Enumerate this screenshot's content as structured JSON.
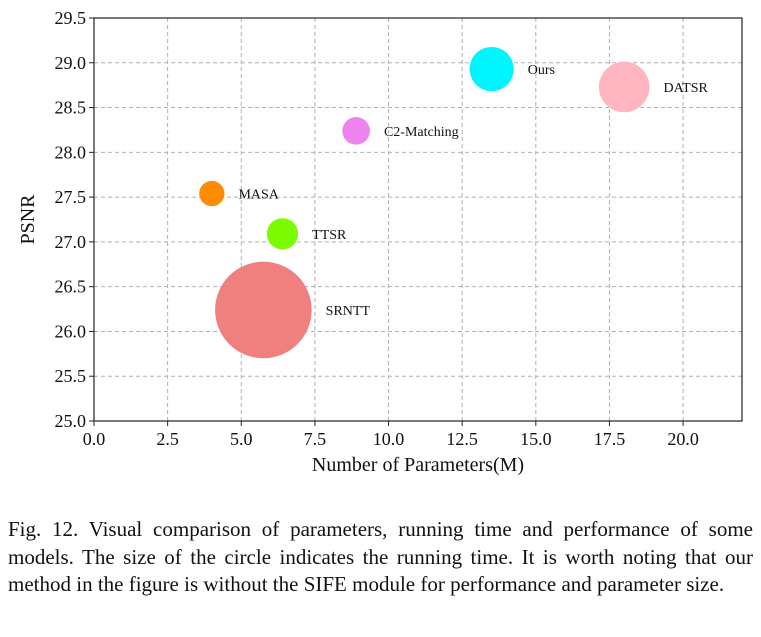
{
  "chart_data": {
    "type": "scatter",
    "xlabel": "Number of Parameters(M)",
    "ylabel": "PSNR",
    "xlim": [
      0,
      22
    ],
    "ylim": [
      25.0,
      29.5
    ],
    "x_ticks": [
      "0.0",
      "2.5",
      "5.0",
      "7.5",
      "10.0",
      "12.5",
      "15.0",
      "17.5",
      "20.0"
    ],
    "y_ticks": [
      "25.0",
      "25.5",
      "26.0",
      "26.5",
      "27.0",
      "27.5",
      "28.0",
      "28.5",
      "29.0",
      "29.5"
    ],
    "grid": true,
    "points": [
      {
        "label": "Ours",
        "x": 13.5,
        "y": 28.93,
        "color": "#00f5ff",
        "size": 0.96
      },
      {
        "label": "DATSR",
        "x": 18.0,
        "y": 28.73,
        "color": "#ffb6c1",
        "size": 1.1
      },
      {
        "label": "C2-Matching",
        "x": 8.9,
        "y": 28.24,
        "color": "#ee82ee",
        "size": 0.6
      },
      {
        "label": "MASA",
        "x": 4.0,
        "y": 27.54,
        "color": "#ff8c00",
        "size": 0.55
      },
      {
        "label": "TTSR",
        "x": 6.4,
        "y": 27.09,
        "color": "#7cfc00",
        "size": 0.68
      },
      {
        "label": "SRNTT",
        "x": 5.75,
        "y": 26.24,
        "color": "#f08080",
        "size": 2.1
      }
    ]
  },
  "caption": "Fig. 12.  Visual comparison of parameters, running time and performance of some models. The size of the circle indicates the running time. It is worth noting that our method in the figure is without the SIFE module for performance and parameter size."
}
